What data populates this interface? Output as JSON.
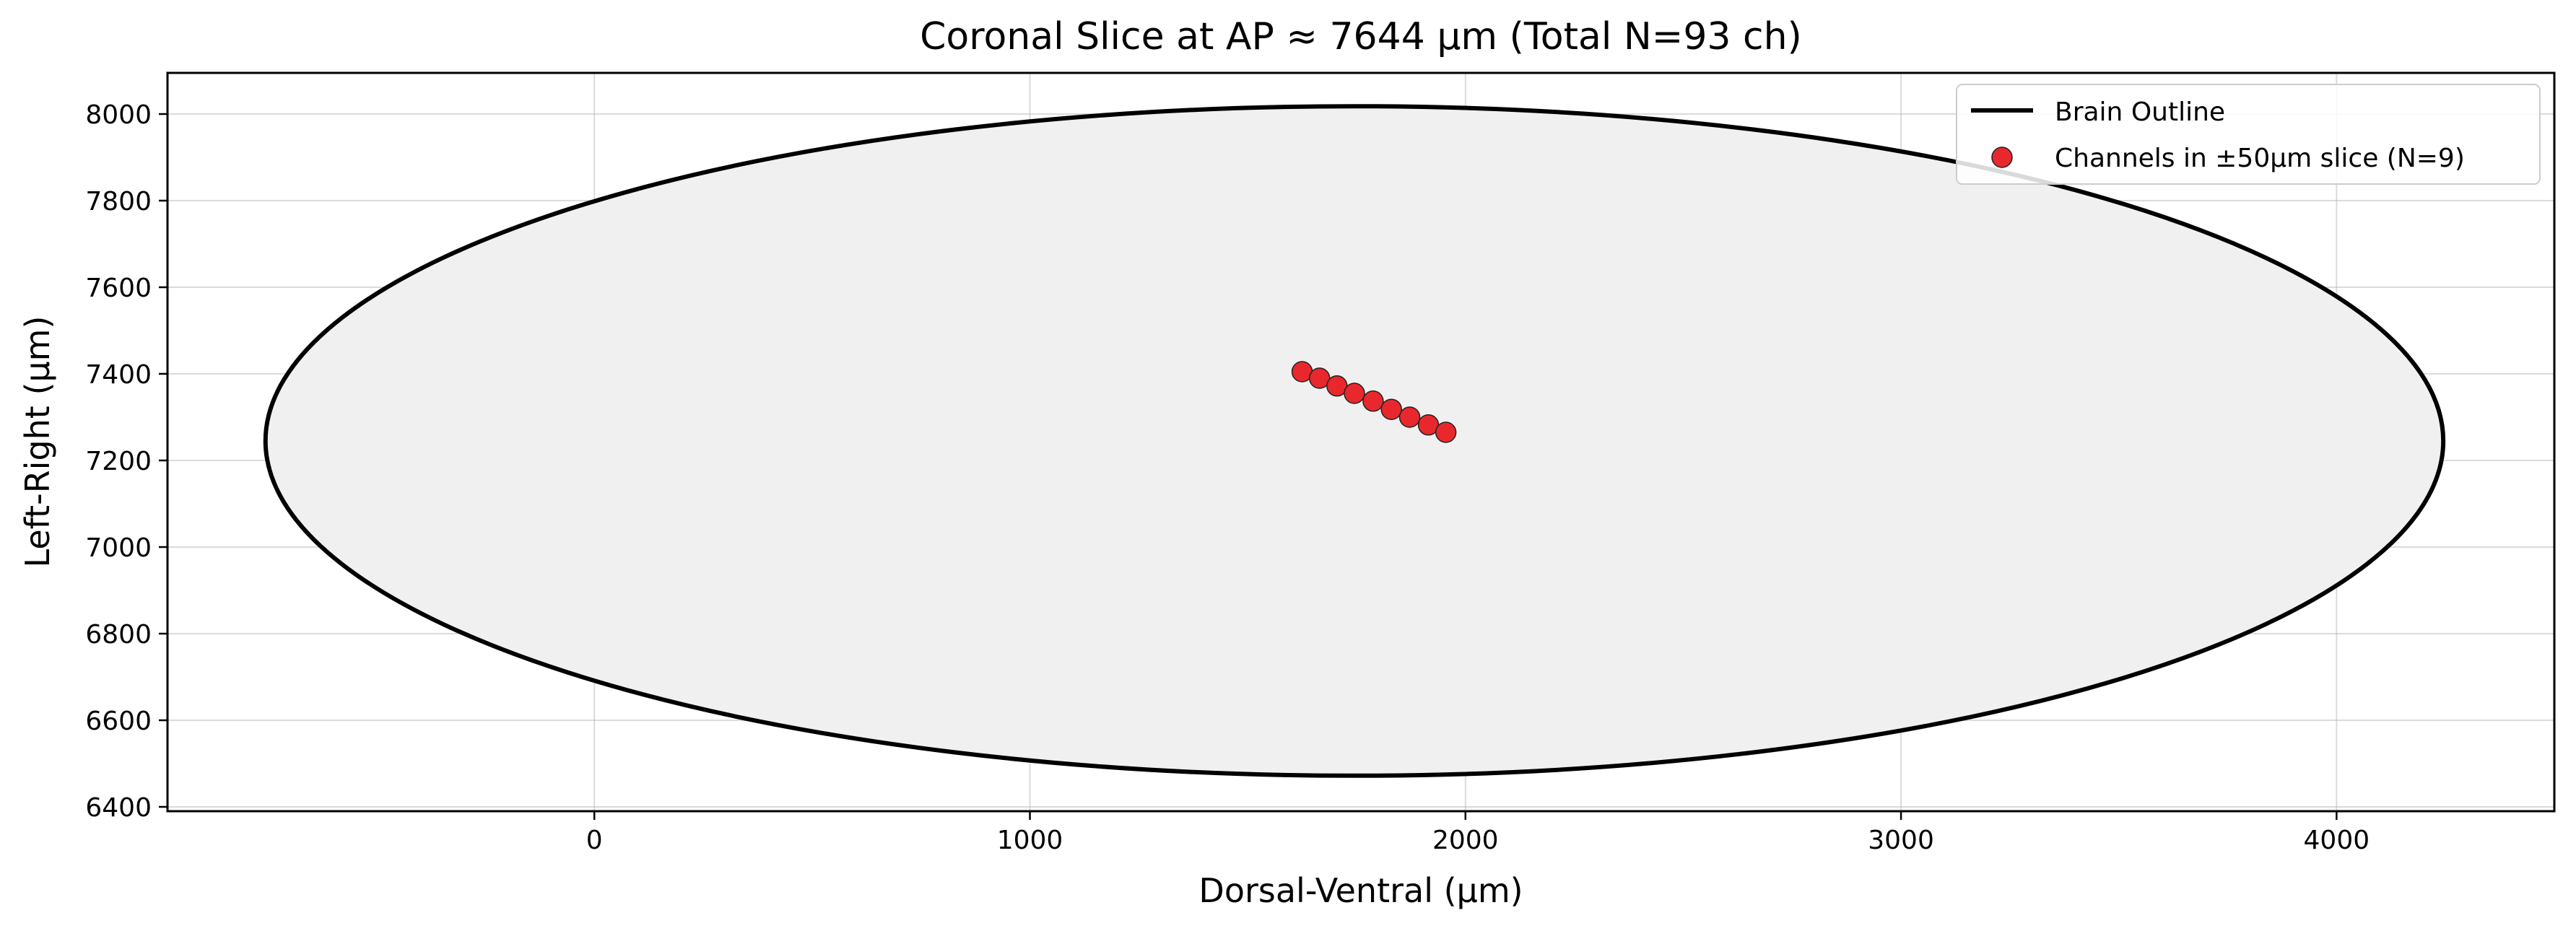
{
  "chart_data": {
    "type": "scatter",
    "title": "Coronal Slice at AP ≈ 7644 µm (Total N=93 ch)",
    "xlabel": "Dorsal-Ventral (µm)",
    "ylabel": "Left-Right (µm)",
    "xlim": [
      -980,
      4500
    ],
    "ylim": [
      6390,
      8095
    ],
    "xticks": [
      0,
      1000,
      2000,
      3000,
      4000
    ],
    "yticks": [
      6400,
      6600,
      6800,
      7000,
      7200,
      7400,
      7600,
      7800,
      8000
    ],
    "grid": true,
    "legend_position": "top-right",
    "brain_outline": {
      "name": "Brain Outline",
      "center": [
        1745,
        7245
      ],
      "radius_x": 2500,
      "radius_y": 773,
      "line_color": "#000000",
      "fill_color": "#f0f0f0"
    },
    "series": [
      {
        "name": "Channels in ±50µm slice (N=9)",
        "color": "#e8282c",
        "points": [
          {
            "x": 1625,
            "y": 7405
          },
          {
            "x": 1665,
            "y": 7390
          },
          {
            "x": 1705,
            "y": 7372
          },
          {
            "x": 1745,
            "y": 7355
          },
          {
            "x": 1788,
            "y": 7337
          },
          {
            "x": 1830,
            "y": 7318
          },
          {
            "x": 1872,
            "y": 7300
          },
          {
            "x": 1915,
            "y": 7282
          },
          {
            "x": 1955,
            "y": 7265
          }
        ]
      }
    ]
  }
}
